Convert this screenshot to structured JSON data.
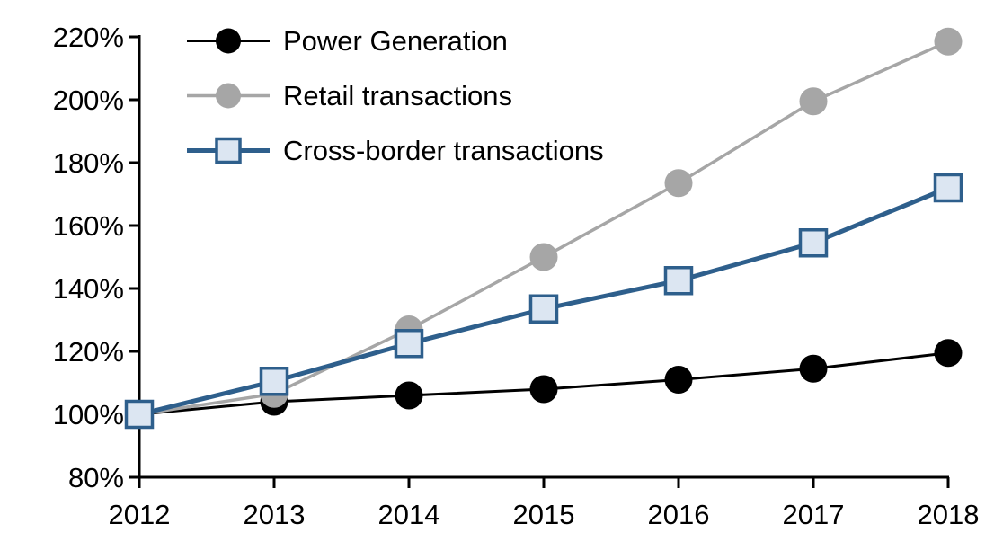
{
  "chart_data": {
    "type": "line",
    "title": "",
    "x": [
      2012,
      2013,
      2014,
      2015,
      2016,
      2017,
      2018
    ],
    "x_tick_labels": [
      "2012",
      "2013",
      "2014",
      "2015",
      "2016",
      "2017",
      "2018"
    ],
    "ylim": [
      80,
      220
    ],
    "y_tick_step": 20,
    "y_tick_labels": [
      "80%",
      "100%",
      "120%",
      "140%",
      "160%",
      "180%",
      "200%",
      "220%"
    ],
    "grid": false,
    "legend_position": "top-left",
    "axis_color": "#000000",
    "background_color": "#ffffff",
    "series": [
      {
        "name": "Power Generation",
        "color": "#000000",
        "marker": "circle",
        "marker_fill": "#000000",
        "line_width": 3,
        "values": [
          100,
          104,
          106,
          108,
          111,
          114.5,
          119.5
        ]
      },
      {
        "name": "Retail transactions",
        "color": "#a6a6a6",
        "marker": "circle",
        "marker_fill": "#a6a6a6",
        "line_width": 3.5,
        "values": [
          100,
          106.5,
          127,
          150,
          173.5,
          199.5,
          218.5
        ]
      },
      {
        "name": "Cross-border transactions",
        "color": "#2e5f8c",
        "marker": "square",
        "marker_fill": "#dce6f2",
        "line_width": 5,
        "values": [
          100,
          110.5,
          122.5,
          133.5,
          142.5,
          154.5,
          172
        ]
      }
    ]
  }
}
